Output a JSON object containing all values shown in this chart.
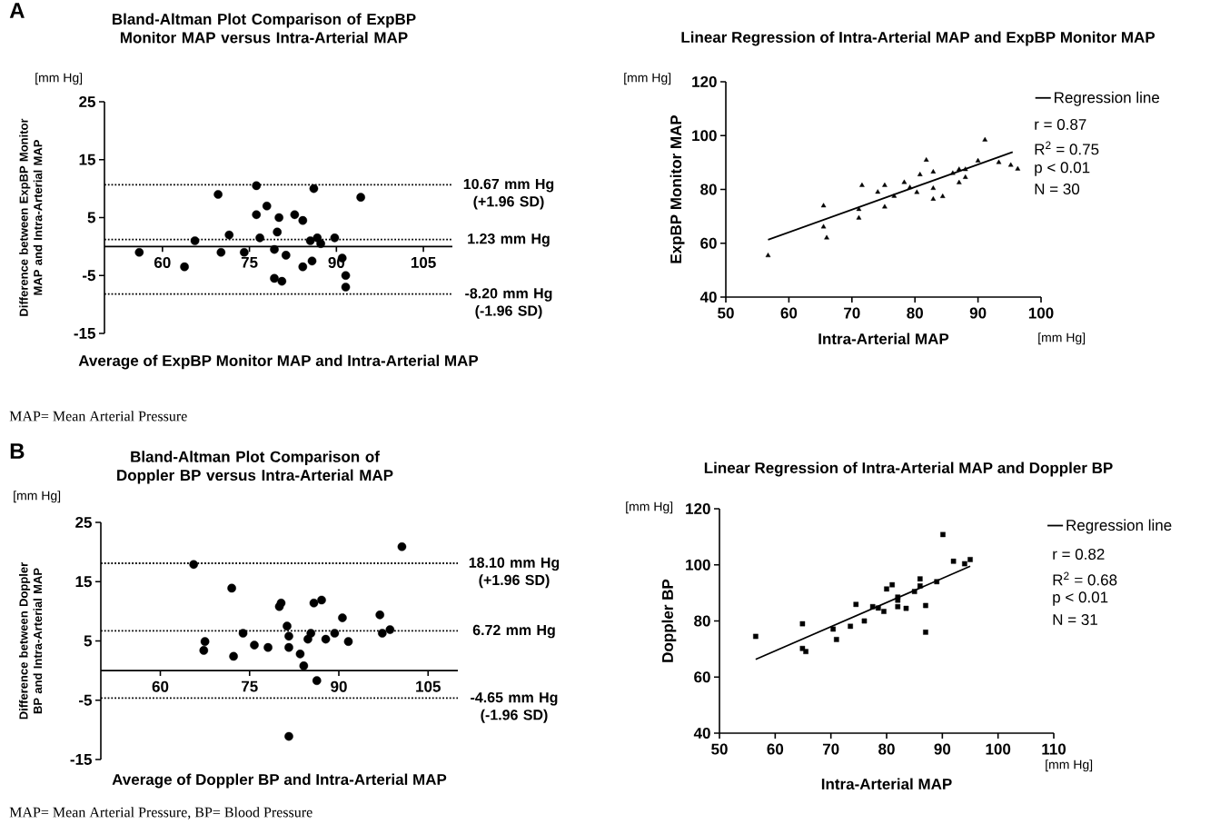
{
  "chart_data": [
    {
      "type": "scatter",
      "title": "Bland-Altman Plot Comparison of ExpBP Monitor MAP versus Intra-Arterial MAP",
      "xlabel": "Average of ExpBP Monitor MAP and Intra-Arterial MAP",
      "ylabel": "Difference between ExpBP Monitor MAP and Intra-Arterial MAP",
      "marker": "circle",
      "xlim": [
        50,
        110
      ],
      "xticks": [
        60,
        75,
        90,
        105
      ],
      "ylim": [
        -15,
        25
      ],
      "yticks": [
        -15,
        -5,
        5,
        15,
        25
      ],
      "series": [
        {
          "color": "#000000",
          "x": [
            56.0,
            63.8,
            65.6,
            69.6,
            70.1,
            71.5,
            74.1,
            76.2,
            76.2,
            76.8,
            78.0,
            79.3,
            79.3,
            79.8,
            80.1,
            80.6,
            81.3,
            82.8,
            84.2,
            84.2,
            85.5,
            85.8,
            86.1,
            86.7,
            87.3,
            89.7,
            91.0,
            91.6,
            91.6,
            94.2
          ],
          "values": [
            -1.0,
            -3.5,
            1.0,
            9.0,
            -1.0,
            2.0,
            -1.0,
            10.5,
            5.5,
            1.5,
            7.0,
            -0.5,
            -5.5,
            2.5,
            5.0,
            -6.0,
            -1.5,
            5.5,
            4.5,
            -3.5,
            1.0,
            -2.5,
            10.0,
            1.5,
            0.5,
            1.5,
            -2.0,
            -5.0,
            -7.0,
            8.5
          ]
        }
      ],
      "ref_lines": [
        {
          "axis": "y",
          "value": 10.67,
          "label": "10.67 mm Hg (+1.96 SD)",
          "line_style": "dotted"
        },
        {
          "axis": "y",
          "value": 1.23,
          "label": "1.23 mm Hg",
          "line_style": "dotted"
        },
        {
          "axis": "y",
          "value": -8.2,
          "label": "-8.20 mm Hg (-1.96 SD)",
          "line_style": "dotted"
        }
      ],
      "annotations": [
        "A",
        "[mm Hg]",
        "MAP= Mean Arterial Pressure"
      ]
    },
    {
      "type": "scatter",
      "title": "Linear Regression of Intra-Arterial MAP and ExpBP Monitor MAP",
      "xlabel": "Intra-Arterial MAP",
      "ylabel": "ExpBP Monitor MAP",
      "legend": "top right",
      "xlim": [
        50,
        100
      ],
      "xticks": [
        50,
        60,
        70,
        80,
        90,
        100
      ],
      "ylim": [
        40,
        120
      ],
      "yticks": [
        40,
        60,
        80,
        100,
        120
      ],
      "series": [
        {
          "color": "#000000",
          "marker": "triangle",
          "x": [
            56.7,
            65.5,
            65.5,
            66.0,
            71.1,
            71.1,
            71.6,
            74.1,
            75.2,
            75.2,
            76.7,
            78.3,
            79.2,
            80.3,
            80.8,
            81.8,
            82.9,
            82.9,
            82.9,
            84.4,
            86.0,
            87.0,
            87.0,
            88.0,
            88.0,
            90.0,
            91.1,
            93.3,
            95.2,
            96.3
          ],
          "values": [
            55.4,
            73.9,
            66.1,
            62.0,
            72.6,
            69.4,
            81.5,
            79.0,
            81.5,
            73.5,
            77.5,
            82.6,
            80.7,
            78.9,
            85.5,
            90.9,
            86.5,
            80.4,
            76.4,
            77.4,
            86.0,
            87.4,
            82.5,
            87.4,
            84.5,
            90.6,
            98.4,
            90.0,
            89.0,
            87.6
          ]
        },
        {
          "name": "Regression line",
          "type": "line",
          "color": "#000000",
          "marker": "none",
          "line_style": "solid",
          "x": [
            56.7,
            95.5
          ],
          "values": [
            61.3,
            93.9
          ]
        }
      ],
      "annotations": [
        "[mm Hg]",
        "[mm Hg]",
        "r = 0.87",
        "R$^{2}$ = 0.75",
        "p  < 0.01",
        "N = 30"
      ]
    },
    {
      "type": "scatter",
      "title": "Bland-Altman Plot Comparison of Doppler BP versus Intra-Arterial MAP",
      "xlabel": "Average of Doppler BP and Intra-Arterial MAP",
      "ylabel": "Difference between Doppler BP and Intra-Arterial MAP",
      "marker": "circle",
      "xlim": [
        50,
        110
      ],
      "xticks": [
        60,
        75,
        90,
        105
      ],
      "ylim": [
        -15,
        25
      ],
      "yticks": [
        -15,
        -5,
        5,
        15,
        25
      ],
      "series": [
        {
          "color": "#000000",
          "x": [
            65.6,
            67.3,
            67.5,
            72.0,
            72.3,
            73.9,
            75.8,
            78.1,
            80.0,
            80.3,
            81.3,
            81.6,
            81.6,
            81.6,
            83.5,
            84.1,
            84.8,
            85.3,
            85.8,
            86.3,
            87.1,
            87.8,
            89.3,
            90.6,
            91.6,
            96.9,
            97.3,
            98.6,
            100.6
          ],
          "values": [
            17.9,
            3.4,
            4.9,
            13.9,
            2.4,
            6.3,
            4.3,
            3.9,
            10.8,
            11.4,
            7.5,
            5.8,
            3.9,
            -11.1,
            2.8,
            0.8,
            5.3,
            6.3,
            11.4,
            -1.7,
            11.9,
            5.3,
            6.3,
            8.9,
            4.9,
            9.4,
            6.3,
            6.9,
            20.9
          ]
        }
      ],
      "ref_lines": [
        {
          "axis": "y",
          "value": 18.1,
          "label": "18.10 mm Hg (+1.96 SD)",
          "line_style": "dotted"
        },
        {
          "axis": "y",
          "value": 6.72,
          "label": "6.72 mm Hg",
          "line_style": "dotted"
        },
        {
          "axis": "y",
          "value": -4.65,
          "label": "-4.65 mm Hg (-1.96 SD)",
          "line_style": "dotted"
        }
      ],
      "annotations": [
        "B",
        "[mm Hg]",
        "MAP= Mean Arterial Pressure, BP= Blood Pressure"
      ]
    },
    {
      "type": "scatter",
      "title": "Linear Regression of Intra-Arterial MAP and Doppler BP",
      "xlabel": "Intra-Arterial MAP",
      "ylabel": "Doppler BP",
      "legend": "top right",
      "xlim": [
        50,
        110
      ],
      "xticks": [
        50,
        60,
        70,
        80,
        90,
        100,
        110
      ],
      "ylim": [
        40,
        120
      ],
      "yticks": [
        40,
        60,
        80,
        100,
        120
      ],
      "series": [
        {
          "color": "#000000",
          "marker": "square",
          "x": [
            56.5,
            64.9,
            64.9,
            65.5,
            70.4,
            71.0,
            73.5,
            74.5,
            76.0,
            77.5,
            78.5,
            79.5,
            80.0,
            81.0,
            82.0,
            82.0,
            82.0,
            83.5,
            85.0,
            86.0,
            86.0,
            87.0,
            87.0,
            89.0,
            90.1,
            92.0,
            94.0,
            95.0
          ],
          "values": [
            74.5,
            79.0,
            70.2,
            69.1,
            77.1,
            73.4,
            78.1,
            85.9,
            80.0,
            85.1,
            84.6,
            83.4,
            91.4,
            92.9,
            88.5,
            87.4,
            85.1,
            84.5,
            90.5,
            95.0,
            92.5,
            85.5,
            76.0,
            94.0,
            110.8,
            101.3,
            100.4,
            101.9
          ]
        },
        {
          "name": "Regression line",
          "type": "line",
          "color": "#000000",
          "marker": "none",
          "line_style": "solid",
          "x": [
            56.5,
            95.0
          ],
          "values": [
            66.3,
            99.5
          ]
        }
      ],
      "annotations": [
        "[mm Hg]",
        "[mm Hg]",
        "r = 0.82",
        "R$^{2}$ = 0.68",
        "p  < 0.01",
        "N = 31"
      ]
    }
  ]
}
